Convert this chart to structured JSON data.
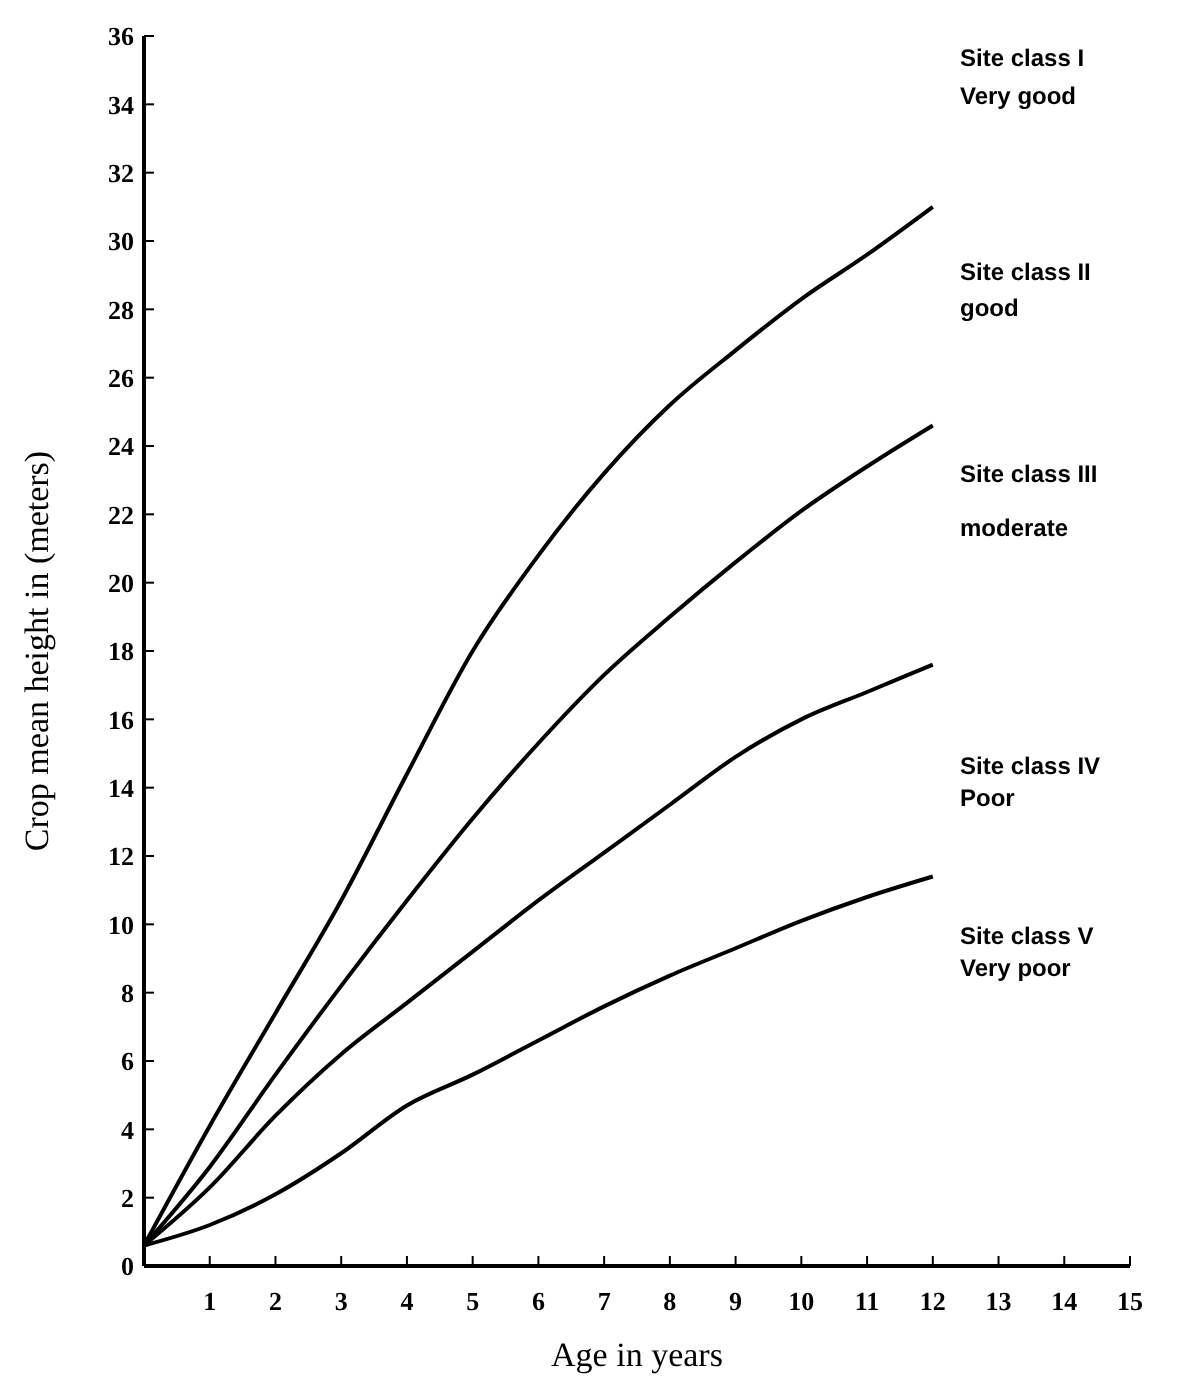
{
  "chart_data": {
    "type": "line",
    "xlabel": "Age in years",
    "ylabel": "Crop mean height in (meters)",
    "x": [
      0,
      1,
      2,
      3,
      4,
      5,
      6,
      7,
      8,
      9,
      10,
      11,
      12
    ],
    "series": [
      {
        "color": "#000000",
        "values": [
          0.6,
          4.1,
          7.4,
          10.7,
          14.4,
          18,
          20.8,
          23.2,
          25.2,
          26.8,
          28.3,
          29.6,
          31
        ]
      },
      {
        "color": "#000000",
        "values": [
          0.6,
          2.9,
          5.6,
          8.2,
          10.7,
          13.1,
          15.3,
          17.3,
          19,
          20.6,
          22.1,
          23.4,
          24.6
        ]
      },
      {
        "color": "#000000",
        "values": [
          0.6,
          2.3,
          4.4,
          6.2,
          7.7,
          9.2,
          10.7,
          12.1,
          13.5,
          14.9,
          16,
          16.8,
          17.6
        ]
      },
      {
        "color": "#000000",
        "values": [
          0.6,
          1.2,
          2.1,
          3.3,
          4.7,
          5.6,
          6.6,
          7.6,
          8.5,
          9.3,
          10.1,
          10.8,
          11.4
        ]
      }
    ],
    "xlim": [
      0,
      15
    ],
    "xticks": [
      1,
      2,
      3,
      4,
      5,
      6,
      7,
      8,
      9,
      10,
      11,
      12,
      13,
      14,
      15
    ],
    "ylim": [
      0,
      36
    ],
    "yticks": [
      0,
      2,
      4,
      6,
      8,
      10,
      12,
      14,
      16,
      18,
      20,
      22,
      24,
      26,
      28,
      30,
      32,
      34,
      36
    ],
    "annotations": [
      "Site class I",
      "Very good",
      "Site class II",
      "good",
      "Site class III",
      "moderate",
      "Site class IV",
      "Poor",
      "Site class V",
      "Very poor"
    ]
  }
}
